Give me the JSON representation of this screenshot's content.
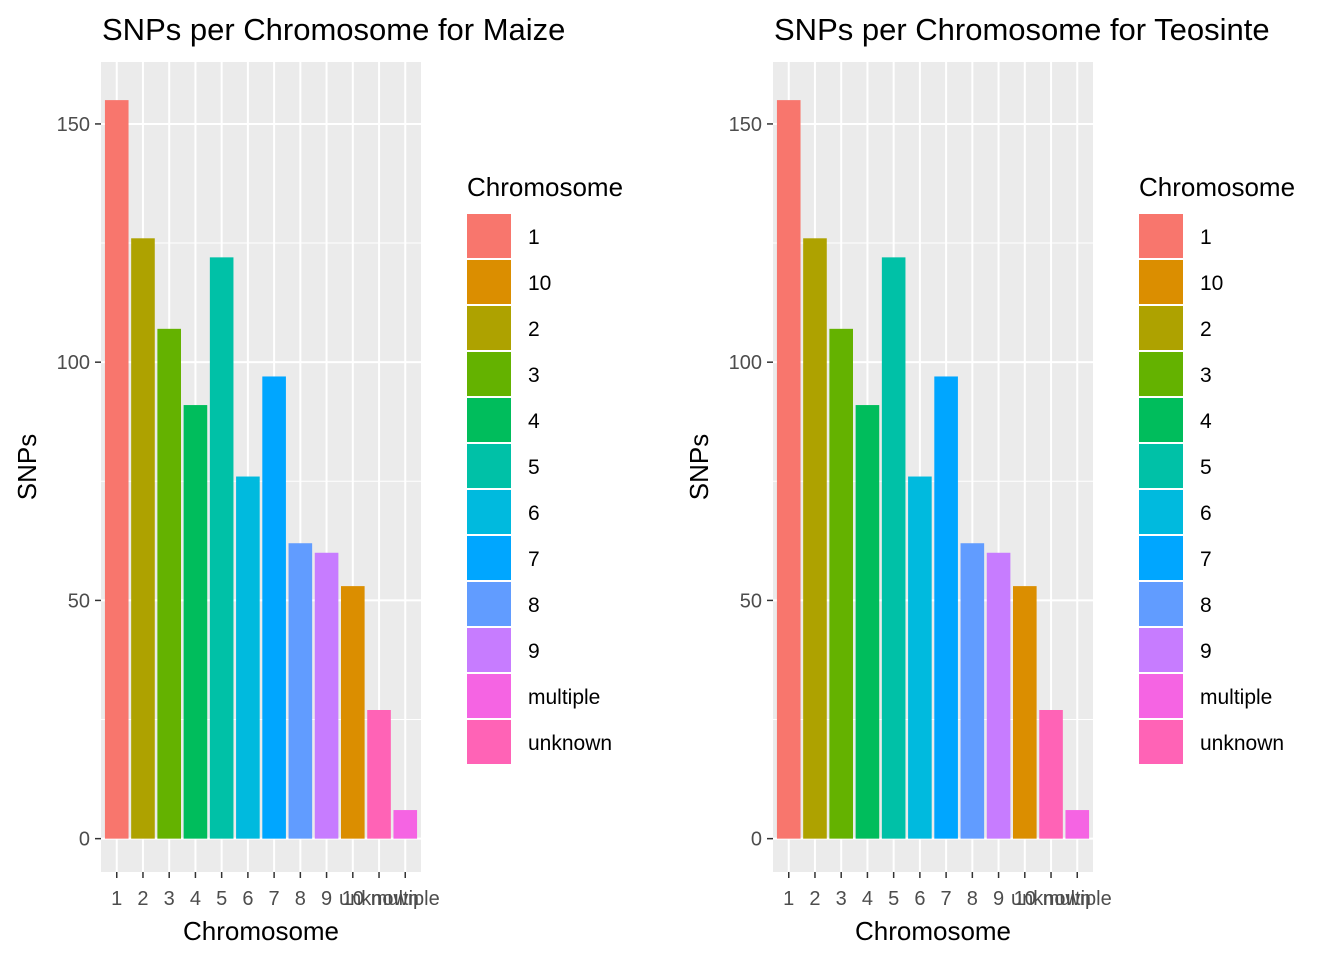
{
  "chart_data": [
    {
      "type": "bar",
      "title": "SNPs per Chromosome for Maize",
      "xlabel": "Chromosome",
      "ylabel": "SNPs",
      "categories": [
        "1",
        "2",
        "3",
        "4",
        "5",
        "6",
        "7",
        "8",
        "9",
        "10",
        "unknown",
        "multiple"
      ],
      "values": [
        155,
        126,
        107,
        91,
        122,
        76,
        97,
        62,
        60,
        53,
        27,
        6
      ],
      "ylim": [
        -7,
        163
      ],
      "yticks": [
        0,
        50,
        100,
        150
      ],
      "grid": true,
      "legend": {
        "title": "Chromosome",
        "position": "right",
        "items": [
          "1",
          "10",
          "2",
          "3",
          "4",
          "5",
          "6",
          "7",
          "8",
          "9",
          "multiple",
          "unknown"
        ]
      }
    },
    {
      "type": "bar",
      "title": "SNPs per Chromosome for Teosinte",
      "xlabel": "Chromosome",
      "ylabel": "SNPs",
      "categories": [
        "1",
        "2",
        "3",
        "4",
        "5",
        "6",
        "7",
        "8",
        "9",
        "10",
        "unknown",
        "multiple"
      ],
      "values": [
        155,
        126,
        107,
        91,
        122,
        76,
        97,
        62,
        60,
        53,
        27,
        6
      ],
      "ylim": [
        -7,
        163
      ],
      "yticks": [
        0,
        50,
        100,
        150
      ],
      "grid": true,
      "legend": {
        "title": "Chromosome",
        "position": "right",
        "items": [
          "1",
          "10",
          "2",
          "3",
          "4",
          "5",
          "6",
          "7",
          "8",
          "9",
          "multiple",
          "unknown"
        ]
      }
    }
  ],
  "colors": {
    "1": "#F8766D",
    "10": "#DB8E00",
    "2": "#AEA200",
    "3": "#64B200",
    "4": "#00BD5C",
    "5": "#00C1A7",
    "6": "#00BADE",
    "7": "#00A6FF",
    "8": "#619CFF",
    "9": "#C77CFF",
    "multiple": "#F564E3",
    "unknown": "#FF63B6",
    "panel_background": "#EBEBEB",
    "grid_major": "#FFFFFF",
    "tick_text": "#4D4D4D"
  }
}
